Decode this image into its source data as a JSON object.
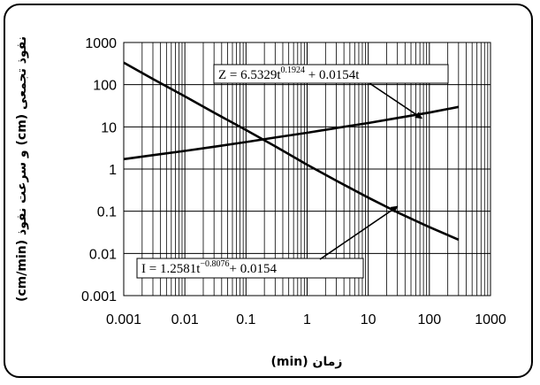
{
  "chart_data": {
    "type": "line",
    "x_scale": "log",
    "y_scale": "log",
    "xlim": [
      0.001,
      1000
    ],
    "ylim": [
      0.001,
      1000
    ],
    "x_ticks": [
      "0.001",
      "0.01",
      "0.1",
      "1",
      "10",
      "100",
      "1000"
    ],
    "y_ticks": [
      "0.001",
      "0.01",
      "0.1",
      "1",
      "10",
      "100",
      "1000"
    ],
    "xlabel": "زمان (min)",
    "ylabel": "نفوذ تجمعی (cm) و سرعت نفوذ (cm/min)",
    "grid": true,
    "series": [
      {
        "x": [
          0.001,
          0.003,
          0.01,
          0.03,
          0.1,
          0.3,
          1,
          3,
          10,
          30,
          100,
          300
        ],
        "y": [
          1.72,
          2.13,
          2.69,
          3.38,
          4.37,
          5.59,
          7.25,
          9.38,
          12.35,
          16.2,
          21.8,
          29.7
        ]
      },
      {
        "x": [
          0.001,
          0.003,
          0.01,
          0.03,
          0.1,
          0.3,
          1,
          3,
          10,
          30,
          100,
          300
        ],
        "y": [
          332.0,
          136.2,
          52.8,
          21.7,
          8.43,
          3.48,
          1.27,
          0.53,
          0.21,
          0.094,
          0.042,
          0.0212
        ]
      }
    ],
    "annotations": [
      {
        "text_main": "Z = 6.5329t",
        "text_exp": "0.1924",
        "text_tail": " + 0.0154t",
        "arrow_to": {
          "x": 75,
          "y": 16
        }
      },
      {
        "text_main": "I = 1.2581t",
        "text_exp": "−0.8076",
        "text_tail": "+ 0.0154",
        "arrow_to": {
          "x": 30,
          "y": 0.13
        }
      }
    ]
  }
}
